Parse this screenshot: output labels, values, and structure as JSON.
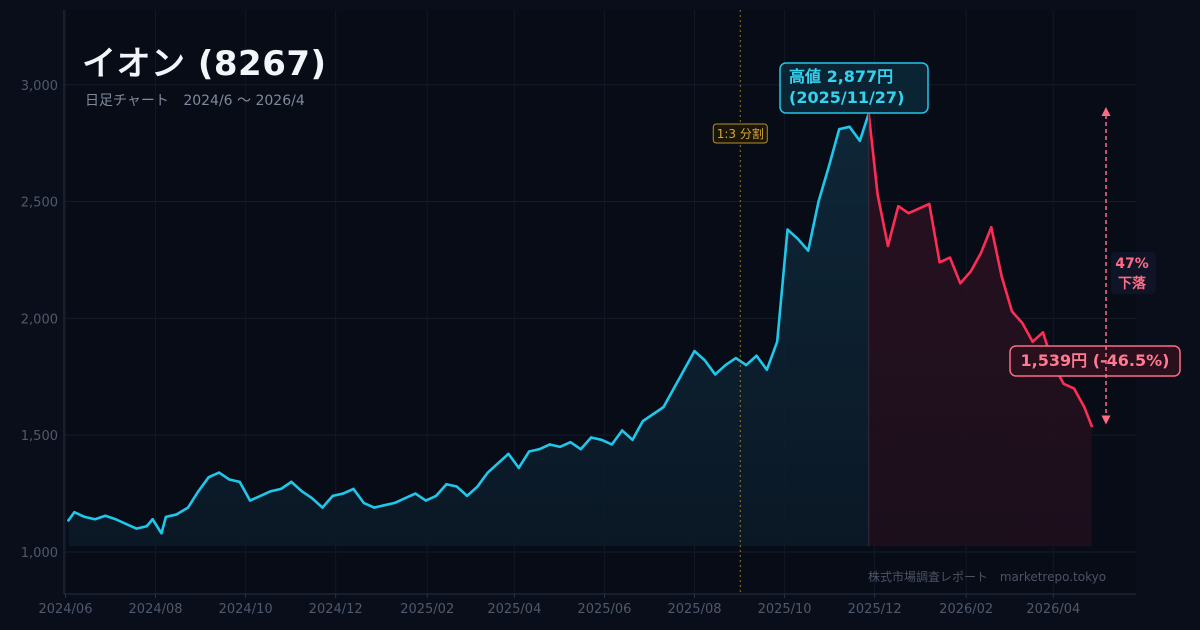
{
  "title": "イオン (8267)",
  "subtitle": {
    "type": "日足チャート",
    "range": "2024/6 〜 2026/4"
  },
  "credit": {
    "name": "株式市場調査レポート",
    "site": "marketrepo.tokyo"
  },
  "colors": {
    "background": "#0a0e1a",
    "rise_line": "#1ec8ea",
    "fall_line": "#ff2d55",
    "annotation_fall": "#ff6b85",
    "split_marker": "#b8902c",
    "axis_text": "#4e596c"
  },
  "chart_data": {
    "type": "line",
    "title": "イオン (8267)",
    "subtitle": "日足チャート 2024/6 〜 2026/4",
    "y_ticks": [
      1000,
      1500,
      2000,
      2500,
      3000
    ],
    "y_tick_labels": [
      "1,000",
      "1,500",
      "2,000",
      "2,500",
      "3,000"
    ],
    "ylim": [
      820,
      3320
    ],
    "x_ticks": [
      "2024-06-01",
      "2024-08-01",
      "2024-10-01",
      "2024-12-01",
      "2025-02-01",
      "2025-04-01",
      "2025-06-01",
      "2025-08-01",
      "2025-10-01",
      "2025-12-01",
      "2026-02-01",
      "2026-04-01"
    ],
    "x_tick_labels": [
      "2024/06",
      "2024/08",
      "2024/10",
      "2024/12",
      "2025/02",
      "2025/04",
      "2025/06",
      "2025/08",
      "2025/10",
      "2025/12",
      "2026/02",
      "2026/04"
    ],
    "xlim": [
      "2024-05-31",
      "2026-05-27"
    ],
    "grid": true,
    "series": [
      {
        "role": "up",
        "x": [
          "2024-06-03",
          "2024-06-07",
          "2024-06-14",
          "2024-06-21",
          "2024-06-28",
          "2024-07-05",
          "2024-07-12",
          "2024-07-19",
          "2024-07-26",
          "2024-07-30",
          "2024-08-05",
          "2024-08-08",
          "2024-08-15",
          "2024-08-23",
          "2024-08-30",
          "2024-09-06",
          "2024-09-13",
          "2024-09-20",
          "2024-09-27",
          "2024-10-04",
          "2024-10-11",
          "2024-10-18",
          "2024-10-25",
          "2024-11-01",
          "2024-11-08",
          "2024-11-15",
          "2024-11-22",
          "2024-11-29",
          "2024-12-06",
          "2024-12-13",
          "2024-12-20",
          "2024-12-27",
          "2025-01-10",
          "2025-01-17",
          "2025-01-24",
          "2025-01-31",
          "2025-02-07",
          "2025-02-14",
          "2025-02-21",
          "2025-02-28",
          "2025-03-07",
          "2025-03-14",
          "2025-03-21",
          "2025-03-28",
          "2025-04-04",
          "2025-04-11",
          "2025-04-18",
          "2025-04-25",
          "2025-05-02",
          "2025-05-09",
          "2025-05-16",
          "2025-05-23",
          "2025-05-30",
          "2025-06-06",
          "2025-06-13",
          "2025-06-20",
          "2025-06-27",
          "2025-07-04",
          "2025-07-11",
          "2025-07-18",
          "2025-07-25",
          "2025-08-01",
          "2025-08-08",
          "2025-08-15",
          "2025-08-22",
          "2025-08-29",
          "2025-09-05",
          "2025-09-12",
          "2025-09-19",
          "2025-09-26",
          "2025-10-03",
          "2025-10-10",
          "2025-10-17",
          "2025-10-24",
          "2025-10-31",
          "2025-11-07",
          "2025-11-14",
          "2025-11-21",
          "2025-11-27"
        ],
        "values": [
          1135,
          1170,
          1150,
          1140,
          1155,
          1140,
          1120,
          1100,
          1110,
          1140,
          1080,
          1150,
          1160,
          1190,
          1260,
          1320,
          1340,
          1310,
          1300,
          1220,
          1240,
          1260,
          1270,
          1300,
          1260,
          1230,
          1190,
          1240,
          1250,
          1270,
          1210,
          1190,
          1210,
          1230,
          1250,
          1220,
          1240,
          1290,
          1280,
          1240,
          1280,
          1340,
          1380,
          1420,
          1360,
          1430,
          1440,
          1460,
          1450,
          1470,
          1440,
          1490,
          1480,
          1460,
          1520,
          1480,
          1560,
          1590,
          1620,
          1700,
          1780,
          1860,
          1820,
          1760,
          1800,
          1830,
          1800,
          1840,
          1780,
          1900,
          2380,
          2340,
          2290,
          2500,
          2650,
          2810,
          2820,
          2760,
          2877
        ]
      },
      {
        "role": "down",
        "x": [
          "2025-11-27",
          "2025-12-03",
          "2025-12-10",
          "2025-12-17",
          "2025-12-24",
          "2026-01-07",
          "2026-01-14",
          "2026-01-21",
          "2026-01-28",
          "2026-02-04",
          "2026-02-11",
          "2026-02-18",
          "2026-02-25",
          "2026-03-04",
          "2026-03-11",
          "2026-03-18",
          "2026-03-25",
          "2026-04-01",
          "2026-04-08",
          "2026-04-15",
          "2026-04-22",
          "2026-04-27"
        ],
        "values": [
          2877,
          2530,
          2310,
          2480,
          2450,
          2490,
          2240,
          2260,
          2150,
          2200,
          2280,
          2390,
          2180,
          2030,
          1980,
          1900,
          1940,
          1800,
          1720,
          1700,
          1620,
          1539
        ]
      }
    ],
    "annotations": {
      "high": {
        "label": "高値 2,877円",
        "date": "(2025/11/27)",
        "x": "2025-11-27",
        "y": 2877
      },
      "last": {
        "label": "1,539円 (-46.5%)",
        "x": "2026-04-27",
        "y": 1539
      },
      "drop": {
        "line1": "47%",
        "line2": "下落"
      },
      "split": {
        "label": "1:3 分割",
        "x": "2025-09-01"
      }
    }
  }
}
